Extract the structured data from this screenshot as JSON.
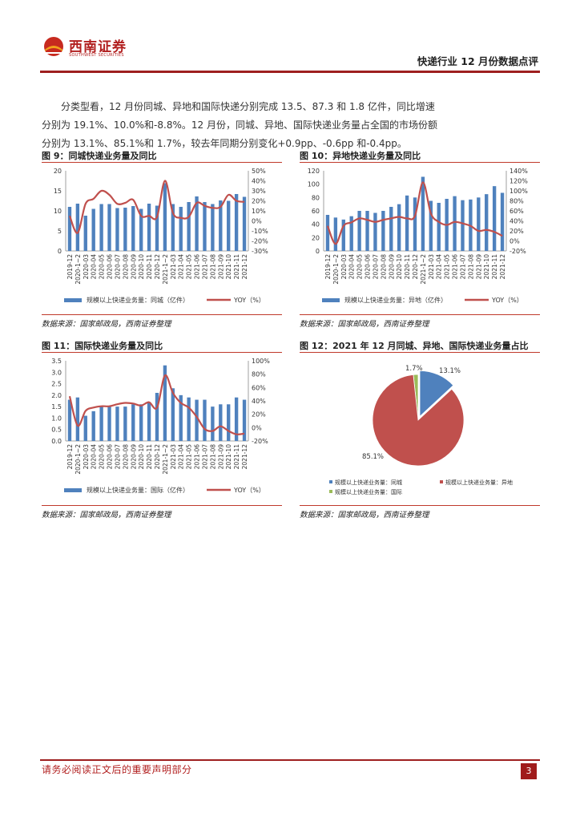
{
  "header": {
    "logo_cn": "西南证券",
    "logo_en": "SOUTHWEST SECURITIES",
    "report_title": "快递行业 12 月份数据点评"
  },
  "body": {
    "para_line1": "分类型看，12 月份同城、异地和国际快递分别完成 13.5、87.3 和 1.8 亿件，同比增速",
    "para_line2": "分别为 19.1%、10.0%和-8.8%。12 月份，同城、异地、国际快递业务量占全国的市场份额",
    "para_line3": "分别为 13.1%、85.1%和 1.7%，较去年同期分别变化+0.9pp、-0.6pp 和-0.4pp。"
  },
  "colors": {
    "bar": "#4f81bd",
    "line": "#c0504d",
    "pie_green": "#9bbb59",
    "accent": "#9e1f1f"
  },
  "figures": {
    "fig9": {
      "title": "图 9：同城快递业务量及同比",
      "source": "数据来源：国家邮政局，西南证券整理"
    },
    "fig10": {
      "title": "图 10：异地快递业务量及同比",
      "source": "数据来源：国家邮政局，西南证券整理"
    },
    "fig11": {
      "title": "图 11：国际快递业务量及同比",
      "source": "数据来源：国家邮政局，西南证券整理"
    },
    "fig12": {
      "title": "图 12：2021 年 12 月同城、异地、国际快递业务量占比",
      "source": "数据来源：国家邮政局，西南证券整理"
    }
  },
  "chart_data": [
    {
      "type": "bar",
      "categories": [
        "2019-12",
        "2020-1~2",
        "2020-03",
        "2020-04",
        "2020-05",
        "2020-06",
        "2020-07",
        "2020-08",
        "2020-09",
        "2020-10",
        "2020-11",
        "2020-12",
        "2021-1~2",
        "2021-03",
        "2021-04",
        "2021-05",
        "2021-06",
        "2021-07",
        "2021-08",
        "2021-09",
        "2021-10",
        "2021-11",
        "2021-12"
      ],
      "series": [
        {
          "name": "规模以上快递业务量：同城（亿件）",
          "type": "bar",
          "axis": "left",
          "values": [
            11.0,
            11.8,
            8.8,
            10.5,
            11.7,
            11.7,
            10.7,
            10.8,
            11.2,
            10.5,
            11.8,
            11.3,
            16.9,
            11.7,
            11.0,
            12.2,
            13.6,
            12.2,
            11.7,
            12.6,
            12.5,
            14.2,
            13.5
          ]
        },
        {
          "name": "YOY（%）",
          "type": "line",
          "axis": "right",
          "values": [
            5,
            -12,
            17,
            22,
            30,
            26,
            17,
            18,
            21,
            5,
            5,
            4,
            40,
            8,
            3,
            4,
            18,
            15,
            13,
            14,
            26,
            20,
            19
          ]
        }
      ],
      "ylim_left": [
        0,
        20
      ],
      "yticks_left": [
        "0",
        "5",
        "10",
        "15",
        "20"
      ],
      "ylim_right": [
        -30,
        50
      ],
      "yticks_right": [
        "-30%",
        "-20%",
        "-10%",
        "0%",
        "10%",
        "20%",
        "30%",
        "40%",
        "50%"
      ]
    },
    {
      "type": "bar",
      "categories": [
        "2019-12",
        "2020-1~2",
        "2020-03",
        "2020-04",
        "2020-05",
        "2020-06",
        "2020-07",
        "2020-08",
        "2020-09",
        "2020-10",
        "2020-11",
        "2020-12",
        "2021-1~2",
        "2021-03",
        "2021-04",
        "2021-05",
        "2021-06",
        "2021-07",
        "2021-08",
        "2021-09",
        "2021-10",
        "2021-11",
        "2021-12"
      ],
      "series": [
        {
          "name": "规模以上快递业务量：异地（亿件）",
          "type": "bar",
          "axis": "left",
          "values": [
            54,
            50,
            47,
            52,
            60,
            60,
            57,
            60,
            66,
            70,
            83,
            80,
            111,
            75,
            72,
            78,
            82,
            76,
            77,
            80,
            85,
            97,
            87
          ]
        },
        {
          "name": "YOY（%）",
          "type": "line",
          "axis": "right",
          "values": [
            30,
            -6,
            30,
            37,
            45,
            42,
            38,
            42,
            45,
            48,
            45,
            50,
            117,
            55,
            38,
            32,
            38,
            35,
            30,
            20,
            22,
            18,
            10
          ]
        }
      ],
      "ylim_left": [
        0,
        120
      ],
      "yticks_left": [
        "0",
        "20",
        "40",
        "60",
        "80",
        "100",
        "120"
      ],
      "ylim_right": [
        -20,
        140
      ],
      "yticks_right": [
        "-20%",
        "0%",
        "20%",
        "40%",
        "60%",
        "80%",
        "100%",
        "120%",
        "140%"
      ]
    },
    {
      "type": "bar",
      "categories": [
        "2019-12",
        "2020-1~2",
        "2020-03",
        "2020-04",
        "2020-05",
        "2020-06",
        "2020-07",
        "2020-08",
        "2020-09",
        "2020-10",
        "2020-11",
        "2020-12",
        "2021-1~2",
        "2021-03",
        "2021-04",
        "2021-05",
        "2021-06",
        "2021-07",
        "2021-08",
        "2021-09",
        "2021-10",
        "2021-11",
        "2021-12"
      ],
      "series": [
        {
          "name": "规模以上快递业务量：国际（亿件）",
          "type": "bar",
          "axis": "left",
          "values": [
            1.8,
            1.9,
            1.1,
            1.3,
            1.5,
            1.5,
            1.5,
            1.5,
            1.6,
            1.6,
            1.7,
            2.1,
            3.3,
            2.3,
            2.0,
            1.9,
            1.8,
            1.8,
            1.5,
            1.6,
            1.6,
            1.9,
            1.8
          ]
        },
        {
          "name": "YOY（%）",
          "type": "line",
          "axis": "right",
          "values": [
            47,
            3,
            25,
            30,
            32,
            32,
            35,
            37,
            36,
            33,
            38,
            30,
            78,
            52,
            37,
            30,
            16,
            -2,
            -5,
            2,
            -5,
            -10,
            -9
          ]
        }
      ],
      "ylim_left": [
        0,
        3.5
      ],
      "yticks_left": [
        "0.0",
        "0.5",
        "1.0",
        "1.5",
        "2.0",
        "2.5",
        "3.0",
        "3.5"
      ],
      "ylim_right": [
        -20,
        100
      ],
      "yticks_right": [
        "-20%",
        "0%",
        "20%",
        "40%",
        "60%",
        "80%",
        "100%"
      ]
    },
    {
      "type": "pie",
      "slices": [
        {
          "name": "规模以上快递业务量：同城",
          "value": 13.1,
          "label": "13.1%"
        },
        {
          "name": "规模以上快递业务量：异地",
          "value": 85.1,
          "label": "85.1%"
        },
        {
          "name": "规模以上快递业务量：国际",
          "value": 1.7,
          "label": "1.7%"
        }
      ],
      "colors": [
        "#4f81bd",
        "#c0504d",
        "#9bbb59"
      ],
      "legend": "bottom"
    }
  ]
}
